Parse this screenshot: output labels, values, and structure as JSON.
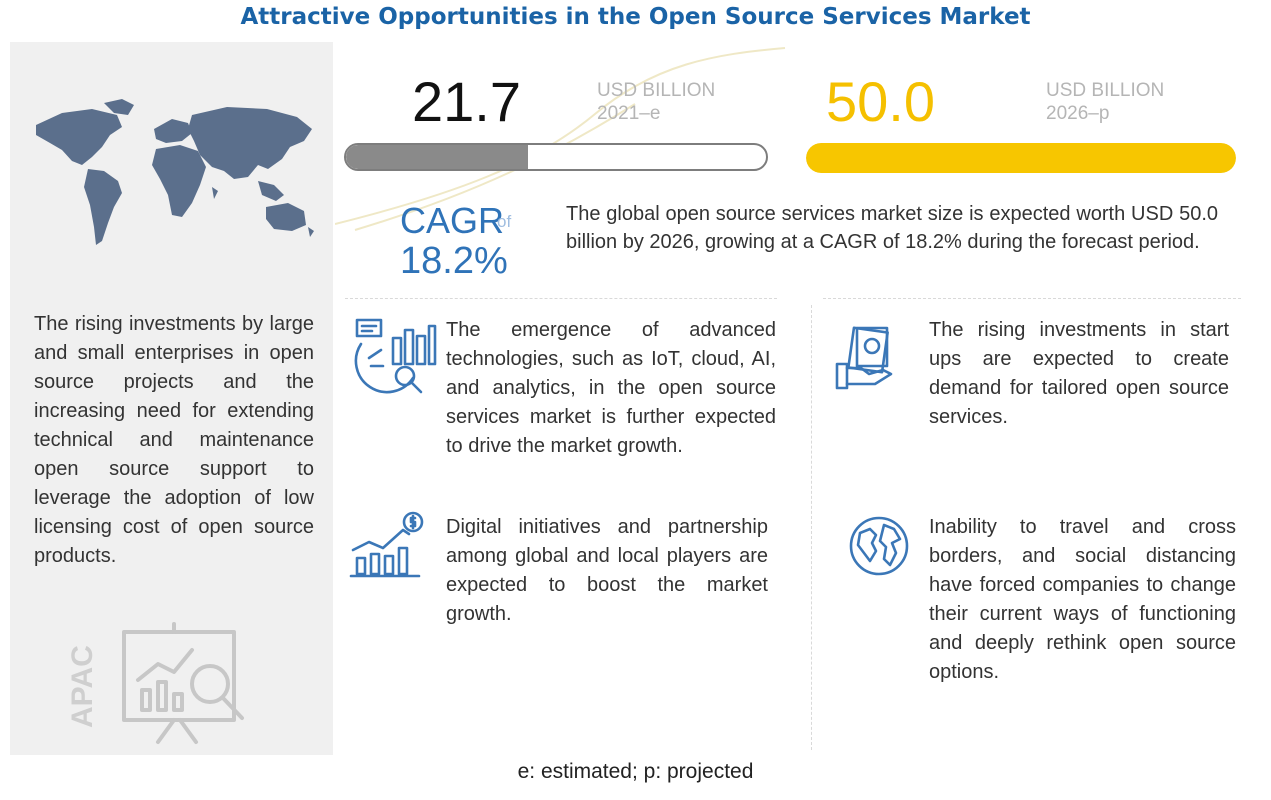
{
  "title": "Attractive Opportunities in the Open Source Services Market",
  "left_panel": {
    "description": "The rising investments by large and small enterprises in open source projects and the increasing need for extending technical and maintenance open source support to leverage the adoption of low licensing cost of open source products.",
    "region_label": "APAC"
  },
  "market": {
    "value_2021": "21.7",
    "unit_2021": "USD BILLION",
    "year_2021": "2021–e",
    "value_2026": "50.0",
    "unit_2026": "USD BILLION",
    "year_2026": "2026–p",
    "fill_2021_fraction": 0.434,
    "fill_2026_fraction": 1.0
  },
  "cagr": {
    "label": "CAGR",
    "of": "of",
    "value": "18.2%"
  },
  "summary": "The global open source services market size is expected worth USD 50.0 billion by 2026, growing at a CAGR of 18.2% during the forecast period.",
  "drivers": [
    {
      "icon": "analytics-icon",
      "text": "The emergence of advanced technologies, such as IoT, cloud, AI, and analytics, in the open source services market is further expected to drive the market growth."
    },
    {
      "icon": "investment-hand-icon",
      "text": "The rising investments in start ups are expected to create demand for tailored open source services."
    },
    {
      "icon": "growth-chart-icon",
      "text": "Digital initiatives and partnership among global and local players are expected to boost the market growth."
    },
    {
      "icon": "globe-icon",
      "text": "Inability to travel and cross borders, and social distancing have forced companies to change their current ways of functioning and deeply rethink open source options."
    }
  ],
  "footnote": "e: estimated; p: projected",
  "colors": {
    "title": "#1a63a6",
    "accent_yellow": "#f7c600",
    "accent_blue": "#2f73b8",
    "bar_grey": "#8a8a8a",
    "map_blue": "#5b6f8c"
  }
}
